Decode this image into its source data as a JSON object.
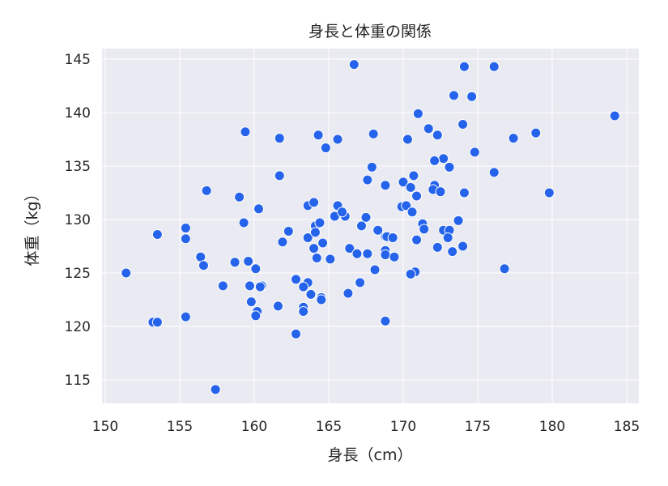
{
  "chart_data": {
    "type": "scatter",
    "title": "身長と体重の関係",
    "xlabel": "身長（cm）",
    "ylabel": "体重（kg）",
    "xlim": [
      149.8,
      185.8
    ],
    "ylim": [
      112.7,
      146.0
    ],
    "xticks": [
      150,
      155,
      160,
      165,
      170,
      175,
      180,
      185
    ],
    "yticks": [
      115,
      120,
      125,
      130,
      135,
      140,
      145
    ],
    "grid": true,
    "legend": null,
    "colors": {
      "point": "#2563EB",
      "point_edge": "#ffffff",
      "plot_bg": "#EAEAF2",
      "grid": "#ffffff"
    },
    "points": [
      [
        151.4,
        125.0
      ],
      [
        153.5,
        128.6
      ],
      [
        155.4,
        129.2
      ],
      [
        155.4,
        128.2
      ],
      [
        156.4,
        126.5
      ],
      [
        156.6,
        125.7
      ],
      [
        153.2,
        120.4
      ],
      [
        153.5,
        120.4
      ],
      [
        155.4,
        120.9
      ],
      [
        157.4,
        114.1
      ],
      [
        158.7,
        126.0
      ],
      [
        159.6,
        126.1
      ],
      [
        160.1,
        125.4
      ],
      [
        157.9,
        123.8
      ],
      [
        159.7,
        123.8
      ],
      [
        159.8,
        122.3
      ],
      [
        160.2,
        121.4
      ],
      [
        160.1,
        121.0
      ],
      [
        159.3,
        129.7
      ],
      [
        159.4,
        138.2
      ],
      [
        161.7,
        137.6
      ],
      [
        164.3,
        137.9
      ],
      [
        164.8,
        136.7
      ],
      [
        161.7,
        134.1
      ],
      [
        156.8,
        132.7
      ],
      [
        159.0,
        132.1
      ],
      [
        160.3,
        131.0
      ],
      [
        163.6,
        131.3
      ],
      [
        164.0,
        131.6
      ],
      [
        164.3,
        129.6
      ],
      [
        164.1,
        129.4
      ],
      [
        162.3,
        128.9
      ],
      [
        161.9,
        127.9
      ],
      [
        163.6,
        128.3
      ],
      [
        164.1,
        128.8
      ],
      [
        164.4,
        129.7
      ],
      [
        164.6,
        127.8
      ],
      [
        164.0,
        127.3
      ],
      [
        164.2,
        126.4
      ],
      [
        165.1,
        126.3
      ],
      [
        165.4,
        130.3
      ],
      [
        166.1,
        130.3
      ],
      [
        167.5,
        130.2
      ],
      [
        167.2,
        129.4
      ],
      [
        168.3,
        129.0
      ],
      [
        168.8,
        128.4
      ],
      [
        166.4,
        127.3
      ],
      [
        166.9,
        126.8
      ],
      [
        167.6,
        126.8
      ],
      [
        168.8,
        127.1
      ],
      [
        168.8,
        126.7
      ],
      [
        168.1,
        125.3
      ],
      [
        167.1,
        124.1
      ],
      [
        166.3,
        123.1
      ],
      [
        162.8,
        124.4
      ],
      [
        163.6,
        124.1
      ],
      [
        163.3,
        123.7
      ],
      [
        163.8,
        123.0
      ],
      [
        164.5,
        122.7
      ],
      [
        164.5,
        122.5
      ],
      [
        163.3,
        121.8
      ],
      [
        163.3,
        121.4
      ],
      [
        162.8,
        119.3
      ],
      [
        161.6,
        121.9
      ],
      [
        160.5,
        123.8
      ],
      [
        160.4,
        123.7
      ],
      [
        168.8,
        120.5
      ],
      [
        166.7,
        144.5
      ],
      [
        174.1,
        144.3
      ],
      [
        176.1,
        144.3
      ],
      [
        173.4,
        141.6
      ],
      [
        174.6,
        141.5
      ],
      [
        171.0,
        139.9
      ],
      [
        174.0,
        138.9
      ],
      [
        168.0,
        138.0
      ],
      [
        171.7,
        138.5
      ],
      [
        172.3,
        137.9
      ],
      [
        170.3,
        137.5
      ],
      [
        177.4,
        137.6
      ],
      [
        174.8,
        136.3
      ],
      [
        172.7,
        135.7
      ],
      [
        172.1,
        135.5
      ],
      [
        173.1,
        134.9
      ],
      [
        167.9,
        134.9
      ],
      [
        176.1,
        134.4
      ],
      [
        167.6,
        133.7
      ],
      [
        168.8,
        133.2
      ],
      [
        170.7,
        134.1
      ],
      [
        170.0,
        133.5
      ],
      [
        170.5,
        133.0
      ],
      [
        170.9,
        132.2
      ],
      [
        169.9,
        131.2
      ],
      [
        170.2,
        131.3
      ],
      [
        170.6,
        130.7
      ],
      [
        172.1,
        133.2
      ],
      [
        172.0,
        132.8
      ],
      [
        172.5,
        132.6
      ],
      [
        174.1,
        132.5
      ],
      [
        168.9,
        128.4
      ],
      [
        169.3,
        128.3
      ],
      [
        171.3,
        129.6
      ],
      [
        171.4,
        129.1
      ],
      [
        170.9,
        128.1
      ],
      [
        172.7,
        129.0
      ],
      [
        173.1,
        129.0
      ],
      [
        173.0,
        128.3
      ],
      [
        173.7,
        129.9
      ],
      [
        172.3,
        127.4
      ],
      [
        173.3,
        127.0
      ],
      [
        174.0,
        127.5
      ],
      [
        169.4,
        126.5
      ],
      [
        170.8,
        125.1
      ],
      [
        170.5,
        124.9
      ],
      [
        184.2,
        139.7
      ],
      [
        178.9,
        138.1
      ],
      [
        179.8,
        132.5
      ],
      [
        176.8,
        125.4
      ],
      [
        165.6,
        137.5
      ],
      [
        165.6,
        131.3
      ],
      [
        165.9,
        130.7
      ]
    ]
  }
}
